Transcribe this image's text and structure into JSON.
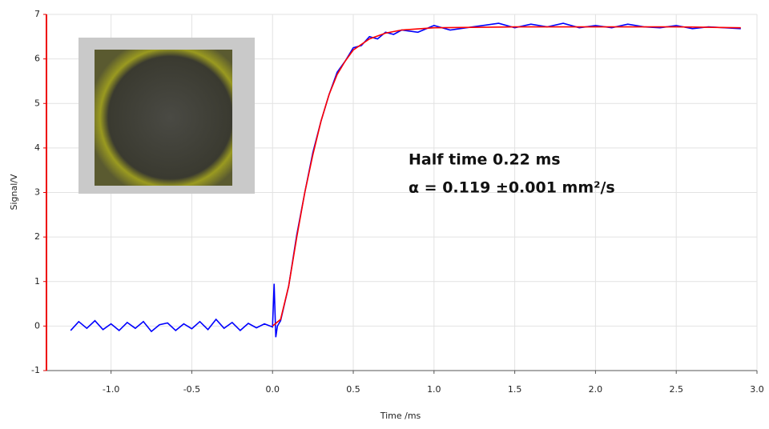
{
  "chart_data": {
    "type": "line",
    "xlabel": "Time /ms",
    "ylabel": "Signal/V",
    "annotations": [
      "Half time 0.22 ms",
      "α = 0.119 ±0.001 mm²/s"
    ],
    "xlim": [
      -1.4,
      3.0
    ],
    "xticks": [
      {
        "value": -1,
        "label": "-1.0"
      },
      {
        "value": -0.5,
        "label": "-0.5"
      },
      {
        "value": 0,
        "label": "0.0"
      },
      {
        "value": 0.5,
        "label": "0.5"
      },
      {
        "value": 1,
        "label": "1.0"
      },
      {
        "value": 1.5,
        "label": "1.5"
      },
      {
        "value": 2,
        "label": "2.0"
      },
      {
        "value": 2.5,
        "label": "2.5"
      },
      {
        "value": 3,
        "label": "3.0"
      }
    ],
    "ylim": [
      -1,
      7
    ],
    "yticks": [
      -1,
      0,
      1,
      2,
      3,
      4,
      5,
      6,
      7
    ],
    "grid": true,
    "series": [
      {
        "color": "#0000ff",
        "x": [
          -1.25,
          -1.2,
          -1.15,
          -1.1,
          -1.05,
          -1.0,
          -0.95,
          -0.9,
          -0.85,
          -0.8,
          -0.75,
          -0.7,
          -0.65,
          -0.6,
          -0.55,
          -0.5,
          -0.45,
          -0.4,
          -0.35,
          -0.3,
          -0.25,
          -0.2,
          -0.15,
          -0.1,
          -0.05,
          0.0,
          0.01,
          0.02,
          0.03,
          0.05,
          0.1,
          0.15,
          0.2,
          0.25,
          0.3,
          0.35,
          0.4,
          0.45,
          0.5,
          0.55,
          0.6,
          0.65,
          0.7,
          0.75,
          0.8,
          0.9,
          1.0,
          1.1,
          1.2,
          1.3,
          1.4,
          1.5,
          1.6,
          1.7,
          1.8,
          1.9,
          2.0,
          2.1,
          2.2,
          2.3,
          2.4,
          2.5,
          2.6,
          2.7,
          2.8,
          2.9
        ],
        "values": [
          -0.1,
          0.1,
          -0.05,
          0.12,
          -0.08,
          0.05,
          -0.1,
          0.08,
          -0.05,
          0.1,
          -0.12,
          0.03,
          0.07,
          -0.1,
          0.05,
          -0.06,
          0.1,
          -0.08,
          0.15,
          -0.05,
          0.08,
          -0.1,
          0.06,
          -0.04,
          0.05,
          -0.02,
          0.95,
          -0.25,
          0.0,
          0.12,
          0.9,
          2.05,
          3.0,
          3.9,
          4.6,
          5.2,
          5.7,
          5.95,
          6.25,
          6.3,
          6.5,
          6.45,
          6.6,
          6.55,
          6.65,
          6.6,
          6.75,
          6.65,
          6.7,
          6.75,
          6.8,
          6.7,
          6.78,
          6.72,
          6.8,
          6.7,
          6.75,
          6.7,
          6.78,
          6.72,
          6.7,
          6.75,
          6.68,
          6.72,
          6.7,
          6.68
        ]
      },
      {
        "color": "#ff0000",
        "x": [
          0,
          0.05,
          0.1,
          0.15,
          0.2,
          0.25,
          0.3,
          0.35,
          0.4,
          0.45,
          0.5,
          0.6,
          0.7,
          0.8,
          1.0,
          1.5,
          2.0,
          2.5,
          2.9
        ],
        "values": [
          0,
          0.15,
          0.9,
          2.0,
          3.0,
          3.85,
          4.6,
          5.2,
          5.65,
          5.95,
          6.2,
          6.45,
          6.58,
          6.65,
          6.7,
          6.72,
          6.72,
          6.72,
          6.7
        ]
      }
    ]
  }
}
